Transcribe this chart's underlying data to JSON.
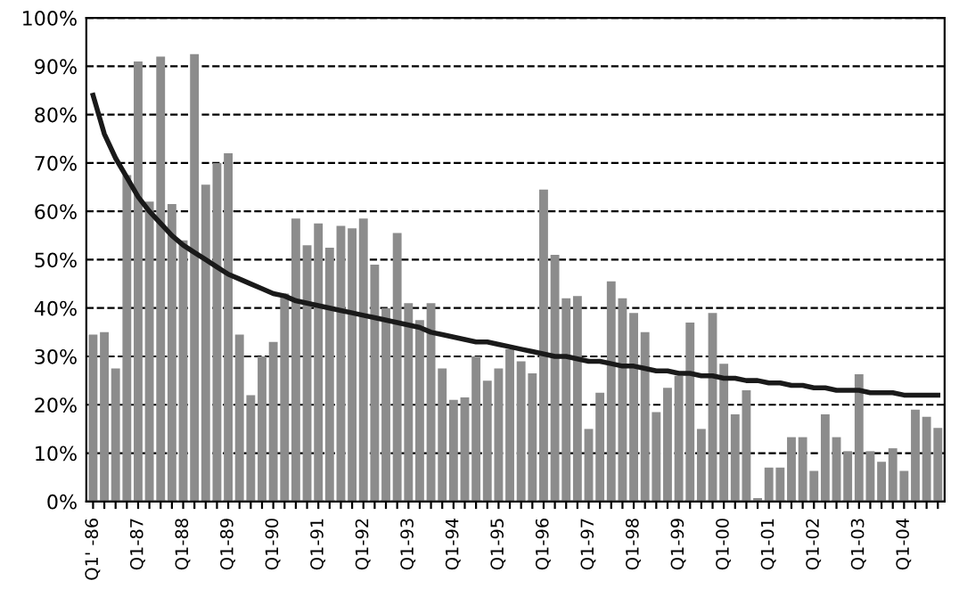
{
  "chart_data": {
    "type": "bar",
    "categories": [
      "Q1' -86",
      null,
      null,
      null,
      "Q1-87",
      null,
      null,
      null,
      "Q1-88",
      null,
      null,
      null,
      "Q1-89",
      null,
      null,
      null,
      "Q1-90",
      null,
      null,
      null,
      "Q1-91",
      null,
      null,
      null,
      "Q1-92",
      null,
      null,
      null,
      "Q1-93",
      null,
      null,
      null,
      "Q1-94",
      null,
      null,
      null,
      "Q1-95",
      null,
      null,
      null,
      "Q1-96",
      null,
      null,
      null,
      "Q1-97",
      null,
      null,
      null,
      "Q1-98",
      null,
      null,
      null,
      "Q1-99",
      null,
      null,
      null,
      "Q1-00",
      null,
      null,
      null,
      "Q1-01",
      null,
      null,
      null,
      "Q1-02",
      null,
      null,
      null,
      "Q1-03",
      null,
      null,
      null,
      "Q1-04",
      null,
      null,
      null
    ],
    "series": [
      {
        "color": "#8c8c8c",
        "values": [
          34.5,
          35,
          27.5,
          67.5,
          91,
          62,
          92,
          61.5,
          54,
          92.5,
          65.5,
          70,
          72,
          34.5,
          22,
          30,
          33,
          43,
          58.5,
          53,
          57.5,
          52.5,
          57,
          56.5,
          58.5,
          49,
          40,
          55.5,
          41,
          37.5,
          41,
          27.5,
          21,
          21.5,
          30,
          25,
          27.5,
          31.5,
          29,
          26.5,
          64.5,
          51,
          42,
          42.5,
          15,
          22.5,
          45.5,
          42,
          39,
          35,
          18.5,
          23.5,
          26,
          37,
          15,
          39,
          28.5,
          18,
          23,
          0.7,
          7,
          7,
          13.3,
          13.3,
          6.3,
          18,
          13.3,
          10.4,
          26.3,
          10.4,
          8.2,
          11,
          6.3,
          19,
          17.5,
          15.2
        ]
      },
      {
        "type": "line",
        "color": "#1a1a1a",
        "values": [
          84,
          76,
          71,
          67,
          63,
          60,
          57.5,
          55,
          53,
          51.5,
          50,
          48.5,
          47,
          46,
          45,
          44,
          43,
          42.5,
          41.5,
          41,
          40.5,
          40,
          39.5,
          39,
          38.5,
          38,
          37.5,
          37,
          36.5,
          36,
          35,
          34.5,
          34,
          33.5,
          33,
          33,
          32.5,
          32,
          31.5,
          31,
          30.5,
          30,
          30,
          29.5,
          29,
          29,
          28.5,
          28,
          28,
          27.5,
          27,
          27,
          26.5,
          26.5,
          26,
          26,
          25.5,
          25.5,
          25,
          25,
          24.5,
          24.5,
          24,
          24,
          23.5,
          23.5,
          23,
          23,
          23,
          22.5,
          22.5,
          22.5,
          22,
          22,
          22,
          22
        ]
      }
    ],
    "ylim": [
      0,
      100
    ],
    "yticks": [
      {
        "value": 0,
        "label": "0%"
      },
      {
        "value": 10,
        "label": "10%"
      },
      {
        "value": 20,
        "label": "20%"
      },
      {
        "value": 30,
        "label": "30%"
      },
      {
        "value": 40,
        "label": "40%"
      },
      {
        "value": 50,
        "label": "50%"
      },
      {
        "value": 60,
        "label": "60%"
      },
      {
        "value": 70,
        "label": "70%"
      },
      {
        "value": 80,
        "label": "80%"
      },
      {
        "value": 90,
        "label": "90%"
      },
      {
        "value": 100,
        "label": "100%"
      }
    ],
    "grid": "y",
    "line_style": "solid",
    "marker": "none"
  }
}
